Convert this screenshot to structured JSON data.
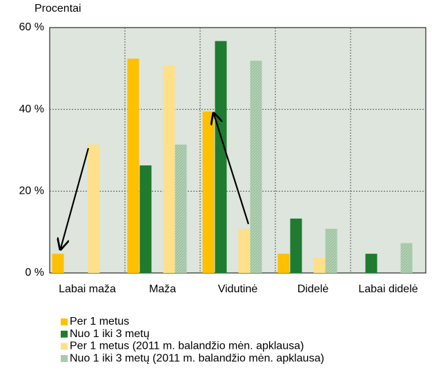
{
  "chart_data": {
    "type": "bar",
    "y_label": "Procentai",
    "categories": [
      "Labai maža",
      "Maža",
      "Vidutinė",
      "Didelė",
      "Labai didelė"
    ],
    "series": [
      {
        "name": "Per 1 metus",
        "color": "#ffc000",
        "values": [
          4.7,
          52.4,
          39.5,
          4.7,
          0
        ]
      },
      {
        "name": "Nuo 1 iki 3 metų",
        "color": "#1e7b30",
        "values": [
          0,
          26.3,
          56.7,
          13.3,
          4.7
        ]
      },
      {
        "name": "Per 1 metus (2011 m. balandžio mėn. apklausa)",
        "color": "#ffe08a",
        "values": [
          31.4,
          50.8,
          10.8,
          3.7,
          0
        ]
      },
      {
        "name": "Nuo 1 iki 3 metų  (2011 m. balandžio mėn. apklausa)",
        "color": "#9dc3a0",
        "values": [
          0,
          31.4,
          51.9,
          10.8,
          7.3
        ]
      }
    ],
    "ylim": [
      0,
      60
    ],
    "yticks": [
      {
        "value": 0,
        "label": "0 %"
      },
      {
        "value": 20,
        "label": "20 %"
      },
      {
        "value": 40,
        "label": "40 %"
      },
      {
        "value": 60,
        "label": "60 %"
      }
    ],
    "grid": true
  }
}
